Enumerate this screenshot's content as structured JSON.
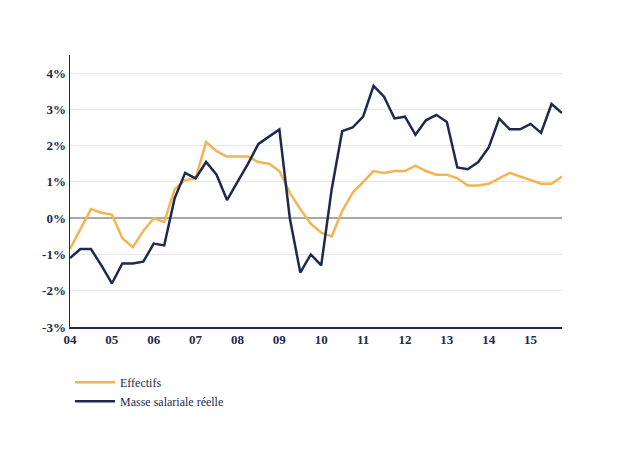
{
  "chart_data": {
    "type": "line",
    "x": [
      2004,
      2004.25,
      2004.5,
      2004.75,
      2005,
      2005.25,
      2005.5,
      2005.75,
      2006,
      2006.25,
      2006.5,
      2006.75,
      2007,
      2007.25,
      2007.5,
      2007.75,
      2008,
      2008.25,
      2008.5,
      2008.75,
      2009,
      2009.25,
      2009.5,
      2009.75,
      2010,
      2010.25,
      2010.5,
      2010.75,
      2011,
      2011.25,
      2011.5,
      2011.75,
      2012,
      2012.25,
      2012.5,
      2012.75,
      2013,
      2013.25,
      2013.5,
      2013.75,
      2014,
      2014.25,
      2014.5,
      2014.75,
      2015,
      2015.25,
      2015.5,
      2015.75
    ],
    "series": [
      {
        "name": "Effectifs",
        "color": "#f6b352",
        "values": [
          -0.85,
          -0.3,
          0.25,
          0.15,
          0.1,
          -0.55,
          -0.8,
          -0.35,
          0.0,
          -0.1,
          0.8,
          1.05,
          1.1,
          2.1,
          1.85,
          1.7,
          1.7,
          1.7,
          1.55,
          1.5,
          1.3,
          0.7,
          0.25,
          -0.15,
          -0.4,
          -0.5,
          0.2,
          0.7,
          1.0,
          1.3,
          1.25,
          1.3,
          1.3,
          1.45,
          1.3,
          1.2,
          1.2,
          1.1,
          0.9,
          0.9,
          0.95,
          1.1,
          1.25,
          1.15,
          1.05,
          0.95,
          0.95,
          1.15
        ]
      },
      {
        "name": "Masse salariale réelle",
        "color": "#1b2a4e",
        "values": [
          -1.1,
          -0.85,
          -0.85,
          -1.3,
          -1.8,
          -1.25,
          -1.25,
          -1.2,
          -0.7,
          -0.75,
          0.55,
          1.25,
          1.1,
          1.55,
          1.2,
          0.5,
          1.0,
          1.5,
          2.05,
          2.25,
          2.45,
          0.0,
          -1.5,
          -1.0,
          -1.3,
          0.8,
          2.4,
          2.5,
          2.8,
          3.65,
          3.35,
          2.75,
          2.8,
          2.3,
          2.7,
          2.85,
          2.65,
          1.4,
          1.35,
          1.55,
          1.95,
          2.75,
          2.45,
          2.45,
          2.6,
          2.35,
          3.15,
          2.9
        ]
      }
    ],
    "xlim": [
      2004,
      2015.75
    ],
    "xticks": [
      {
        "value": 2004,
        "label": "04"
      },
      {
        "value": 2005,
        "label": "05"
      },
      {
        "value": 2006,
        "label": "06"
      },
      {
        "value": 2007,
        "label": "07"
      },
      {
        "value": 2008,
        "label": "08"
      },
      {
        "value": 2009,
        "label": "09"
      },
      {
        "value": 2010,
        "label": "10"
      },
      {
        "value": 2011,
        "label": "11"
      },
      {
        "value": 2012,
        "label": "12"
      },
      {
        "value": 2013,
        "label": "13"
      },
      {
        "value": 2014,
        "label": "14"
      },
      {
        "value": 2015,
        "label": "15"
      }
    ],
    "ylim": [
      -3,
      4.5
    ],
    "yticks": [
      {
        "value": -3,
        "label": "-3%"
      },
      {
        "value": -2,
        "label": "-2%"
      },
      {
        "value": -1,
        "label": "-1%"
      },
      {
        "value": 0,
        "label": "0%"
      },
      {
        "value": 1,
        "label": "1%"
      },
      {
        "value": 2,
        "label": "2%"
      },
      {
        "value": 3,
        "label": "3%"
      },
      {
        "value": 4,
        "label": "4%"
      }
    ],
    "grid": true,
    "legend": "bottom-left"
  }
}
